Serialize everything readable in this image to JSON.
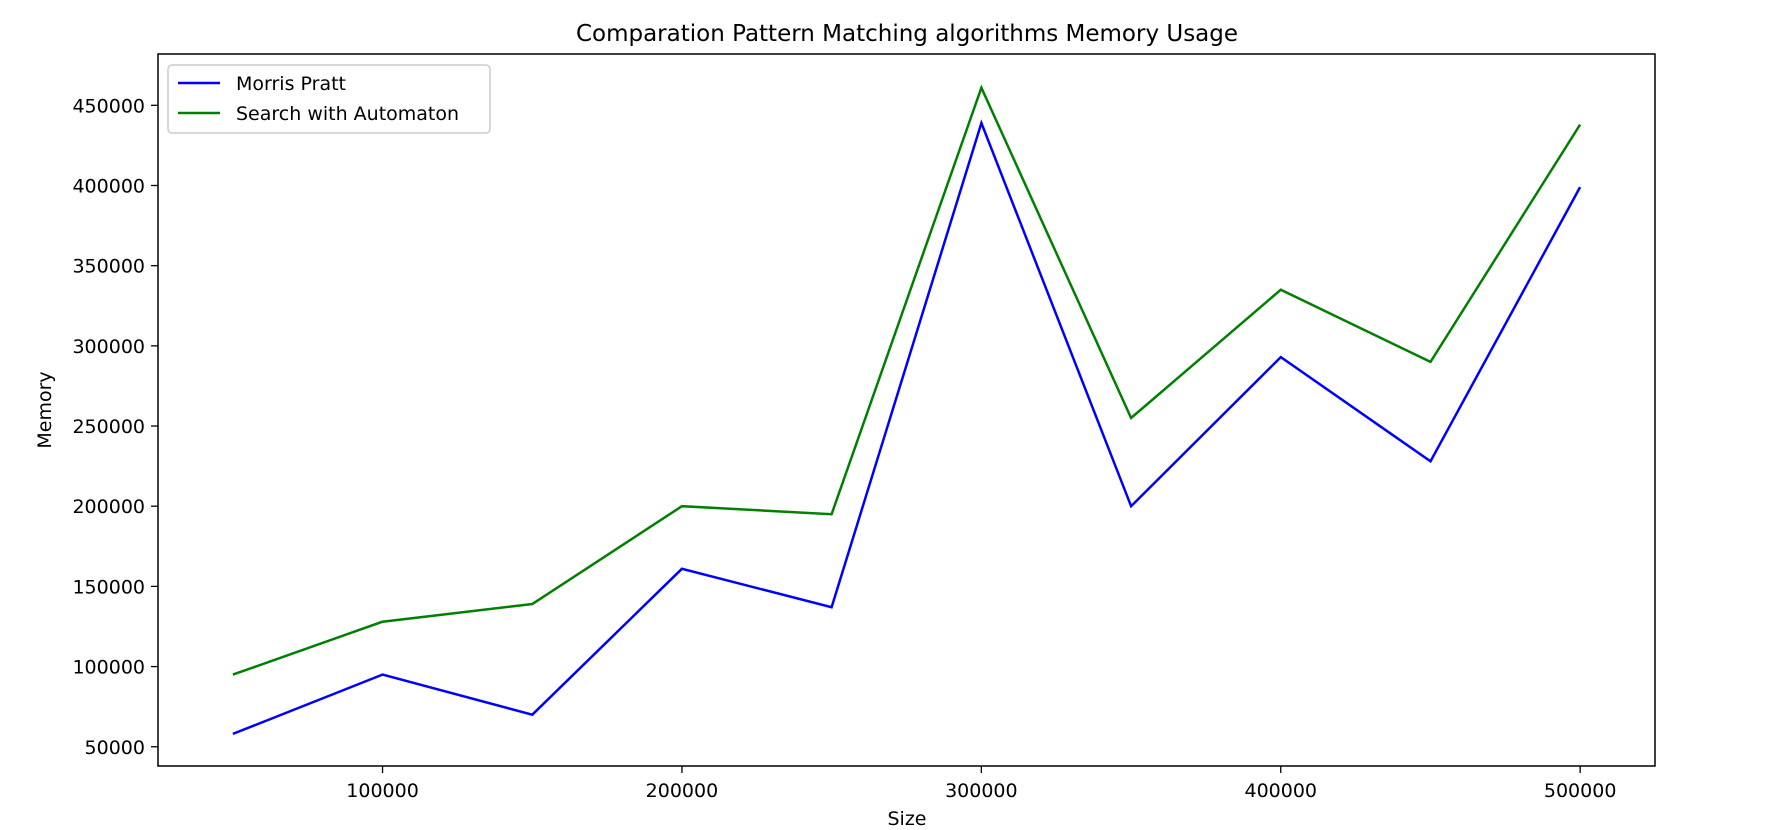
{
  "chart_data": {
    "type": "line",
    "title": "Comparation Pattern Matching algorithms Memory Usage",
    "xlabel": "Size",
    "ylabel": "Memory",
    "x": [
      50000,
      100000,
      150000,
      200000,
      250000,
      300000,
      350000,
      400000,
      450000,
      500000
    ],
    "xticks": [
      100000,
      200000,
      300000,
      400000,
      500000
    ],
    "yticks": [
      50000,
      100000,
      150000,
      200000,
      250000,
      300000,
      350000,
      400000,
      450000
    ],
    "xlim": [
      25000,
      525000
    ],
    "ylim": [
      38000,
      482000
    ],
    "grid": false,
    "legend_position": "top-left",
    "series": [
      {
        "name": "Morris Pratt",
        "color": "#0000ff",
        "values": [
          58000,
          95000,
          70000,
          161000,
          137000,
          439000,
          200000,
          293000,
          228000,
          399000
        ]
      },
      {
        "name": "Search with Automaton",
        "color": "#008000",
        "values": [
          95000,
          128000,
          139000,
          200000,
          195000,
          461000,
          255000,
          335000,
          290000,
          438000
        ]
      }
    ]
  }
}
